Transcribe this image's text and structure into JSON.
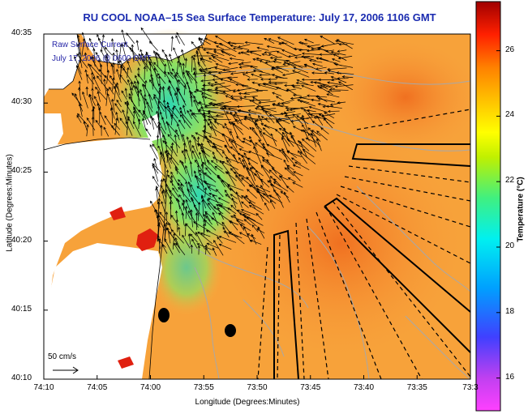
{
  "title": "RU COOL  NOAA–15  Sea Surface Temperature:  July 17, 2006 1106 GMT",
  "overlay": {
    "line1": "Raw Surface Current",
    "line2": "July 17, 2006 @ 0600 GMT"
  },
  "axes": {
    "xlabel": "Longitude (Degrees:Minutes)",
    "ylabel": "Latitude (Degrees:Minutes)",
    "xticks": [
      "74:10",
      "74:05",
      "74:00",
      "73:55",
      "73:50",
      "73:45",
      "73:40",
      "73:35",
      "73:3"
    ],
    "yticks": [
      "40:35",
      "40:30",
      "40:25",
      "40:20",
      "40:15",
      "40:10"
    ]
  },
  "colorbar": {
    "label": "Temperature (°C)",
    "ticks": [
      "26",
      "24",
      "22",
      "20",
      "18",
      "16"
    ],
    "range": [
      15,
      27.5
    ]
  },
  "scale_label": "50 cm/s",
  "colors": {
    "title": "#1a2bb0",
    "land": "#ffffff",
    "warm_water": "#f89830",
    "cool_water": "#60e080",
    "vectors": "#000000",
    "contours": "#a0a0a0",
    "boundaries": "#000000"
  },
  "map_features": {
    "boundaries": "solid and dashed shipping lanes / disposal areas",
    "markers": 2
  }
}
